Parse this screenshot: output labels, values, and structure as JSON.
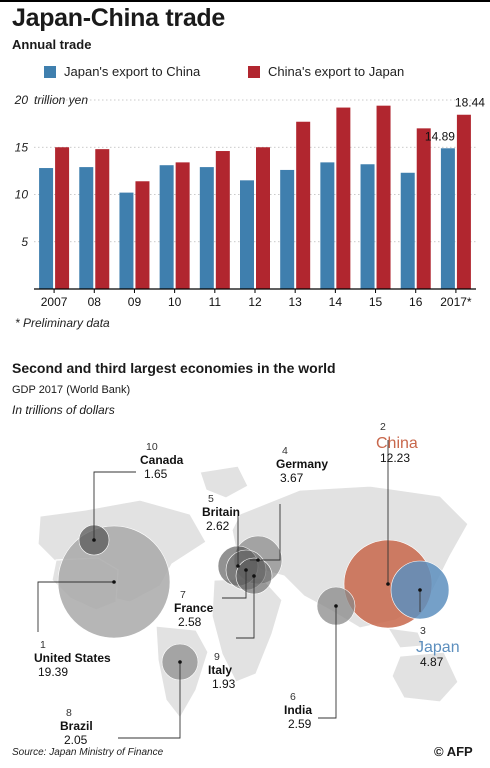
{
  "header": {
    "title": "Japan-China trade",
    "subtitle": "Annual trade"
  },
  "colors": {
    "blue": "#3f7fae",
    "red": "#b1262f",
    "grey": "#a9a9a9",
    "china": "#c8674b",
    "japan": "#5d8fbe",
    "land": "#e2e2e2"
  },
  "legend": [
    {
      "label": "Japan's export to China",
      "color": "#3f7fae"
    },
    {
      "label": "China's export to Japan",
      "color": "#b1262f"
    }
  ],
  "chart_data": [
    {
      "type": "bar",
      "title": "Japan-China trade",
      "subtitle": "Annual trade",
      "ylabel": "trillion yen",
      "ylim": [
        0,
        20
      ],
      "yticks": [
        5,
        10,
        15,
        20
      ],
      "grid": true,
      "legend_position": "top",
      "categories": [
        "2007",
        "08",
        "09",
        "10",
        "11",
        "12",
        "13",
        "14",
        "15",
        "16",
        "2017*"
      ],
      "series": [
        {
          "name": "Japan's export to China",
          "values": [
            12.8,
            12.9,
            10.2,
            13.1,
            12.9,
            11.5,
            12.6,
            13.4,
            13.2,
            12.3,
            14.89
          ]
        },
        {
          "name": "China's export to Japan",
          "values": [
            15.0,
            14.8,
            11.4,
            13.4,
            14.6,
            15.0,
            17.7,
            19.2,
            19.4,
            17.0,
            18.44
          ]
        }
      ],
      "data_labels": [
        {
          "series": 0,
          "index": 10,
          "text": "14.89"
        },
        {
          "series": 1,
          "index": 10,
          "text": "18.44"
        }
      ]
    },
    {
      "type": "bubble",
      "title": "Second and third largest economies in the world",
      "subtitle": "GDP 2017 (World Bank)",
      "unit": "In trillions of dollars",
      "points": [
        {
          "rank": "1",
          "name": "United States",
          "value": "19.39"
        },
        {
          "rank": "2",
          "name": "China",
          "value": "12.23"
        },
        {
          "rank": "3",
          "name": "Japan",
          "value": "4.87"
        },
        {
          "rank": "4",
          "name": "Germany",
          "value": "3.67"
        },
        {
          "rank": "5",
          "name": "Britain",
          "value": "2.62"
        },
        {
          "rank": "6",
          "name": "India",
          "value": "2.59"
        },
        {
          "rank": "7",
          "name": "France",
          "value": "2.58"
        },
        {
          "rank": "8",
          "name": "Brazil",
          "value": "2.05"
        },
        {
          "rank": "9",
          "name": "Italy",
          "value": "1.93"
        },
        {
          "rank": "10",
          "name": "Canada",
          "value": "1.65"
        }
      ]
    }
  ],
  "footnote": "* Preliminary data",
  "source": "Source: Japan Ministry of Finance",
  "credit": "© AFP"
}
